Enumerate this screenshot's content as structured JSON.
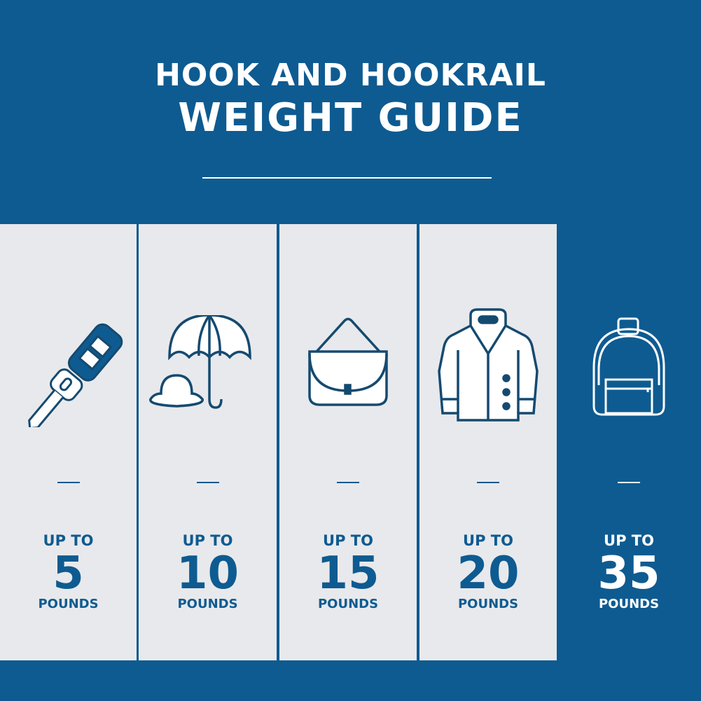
{
  "title": {
    "line1": "HOOK AND HOOKRAIL",
    "line2": "WEIGHT GUIDE"
  },
  "colors": {
    "brand_blue": "#0e5b91",
    "panel_gray": "#e8e9ec",
    "icon_stroke": "#154a70"
  },
  "items": [
    {
      "icon": "car-key-icon",
      "prefix": "UP TO",
      "value": "5",
      "unit": "POUNDS"
    },
    {
      "icon": "umbrella-and-hat-icon",
      "prefix": "UP TO",
      "value": "10",
      "unit": "POUNDS"
    },
    {
      "icon": "handbag-icon",
      "prefix": "UP TO",
      "value": "15",
      "unit": "POUNDS"
    },
    {
      "icon": "coat-icon",
      "prefix": "UP TO",
      "value": "20",
      "unit": "POUNDS"
    },
    {
      "icon": "backpack-icon",
      "prefix": "UP TO",
      "value": "35",
      "unit": "POUNDS"
    }
  ]
}
